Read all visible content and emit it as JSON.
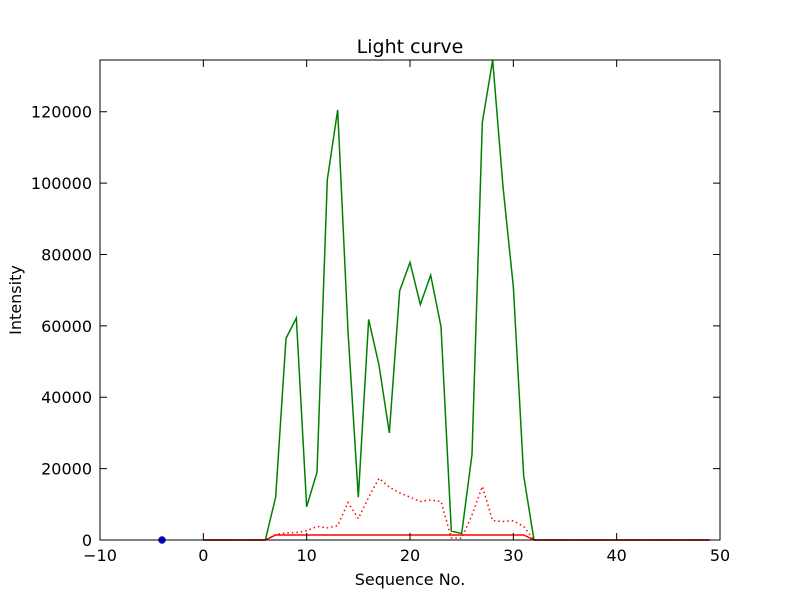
{
  "chart_data": {
    "type": "line",
    "title": "Light curve",
    "xlabel": "Sequence No.",
    "ylabel": "Intensity",
    "xlim": [
      -10,
      50
    ],
    "ylim": [
      0,
      134500
    ],
    "x_ticks": [
      -10,
      0,
      10,
      20,
      30,
      40,
      50
    ],
    "y_ticks": [
      0,
      20000,
      40000,
      60000,
      80000,
      100000,
      120000
    ],
    "grid": false,
    "series": [
      {
        "color": "#008000",
        "style": "solid",
        "x": [
          0,
          1,
          2,
          3,
          4,
          5,
          6,
          7,
          8,
          9,
          10,
          11,
          12,
          13,
          14,
          15,
          16,
          17,
          18,
          19,
          20,
          21,
          22,
          23,
          24,
          25,
          26,
          27,
          28,
          29,
          30,
          31,
          32,
          33,
          34,
          35,
          36,
          37,
          38,
          39,
          40,
          41,
          42,
          43,
          44,
          45,
          46,
          47,
          48,
          49
        ],
        "values": [
          0,
          0,
          0,
          0,
          0,
          0,
          0,
          12000,
          56500,
          62200,
          9300,
          19000,
          101000,
          120500,
          58500,
          12000,
          61800,
          49000,
          30000,
          69800,
          77800,
          66000,
          74200,
          59800,
          2500,
          1800,
          24000,
          117000,
          134500,
          99000,
          71000,
          18000,
          0,
          0,
          0,
          0,
          0,
          0,
          0,
          0,
          0,
          0,
          0,
          0,
          0,
          0,
          0,
          0,
          0,
          0
        ]
      },
      {
        "color": "#ff0000",
        "style": "dotted",
        "x": [
          0,
          1,
          2,
          3,
          4,
          5,
          6,
          7,
          8,
          9,
          10,
          11,
          12,
          13,
          14,
          15,
          16,
          17,
          18,
          19,
          20,
          21,
          22,
          23,
          24,
          25,
          26,
          27,
          28,
          29,
          30,
          31,
          32,
          33,
          34,
          35,
          36,
          37,
          38,
          39,
          40,
          41,
          42,
          43,
          44,
          45,
          46,
          47,
          48,
          49
        ],
        "values": [
          0,
          0,
          0,
          0,
          0,
          0,
          0,
          1500,
          2000,
          2100,
          2600,
          3800,
          3400,
          4000,
          10500,
          6000,
          12000,
          17300,
          14800,
          13200,
          12000,
          10800,
          11200,
          10800,
          600,
          500,
          7000,
          15000,
          5400,
          5200,
          5400,
          3800,
          0,
          0,
          0,
          0,
          0,
          0,
          0,
          0,
          0,
          0,
          0,
          0,
          0,
          0,
          0,
          0,
          0,
          0
        ]
      },
      {
        "color": "#ff0000",
        "style": "solid",
        "x": [
          0,
          1,
          2,
          3,
          4,
          5,
          6,
          7,
          8,
          9,
          10,
          11,
          12,
          13,
          14,
          15,
          16,
          17,
          18,
          19,
          20,
          21,
          22,
          23,
          24,
          25,
          26,
          27,
          28,
          29,
          30,
          31,
          32,
          33,
          34,
          35,
          36,
          37,
          38,
          39,
          40,
          41,
          42,
          43,
          44,
          45,
          46,
          47,
          48,
          49
        ],
        "values": [
          0,
          0,
          0,
          0,
          0,
          0,
          0,
          1400,
          1400,
          1400,
          1400,
          1400,
          1400,
          1400,
          1400,
          1400,
          1400,
          1400,
          1400,
          1400,
          1400,
          1400,
          1400,
          1400,
          1400,
          1400,
          1400,
          1400,
          1400,
          1400,
          1400,
          1400,
          0,
          0,
          0,
          0,
          0,
          0,
          0,
          0,
          0,
          0,
          0,
          0,
          0,
          0,
          0,
          0,
          0,
          0
        ]
      },
      {
        "color": "#0000ff",
        "style": "marker",
        "x": [
          -4
        ],
        "values": [
          0
        ]
      }
    ]
  }
}
